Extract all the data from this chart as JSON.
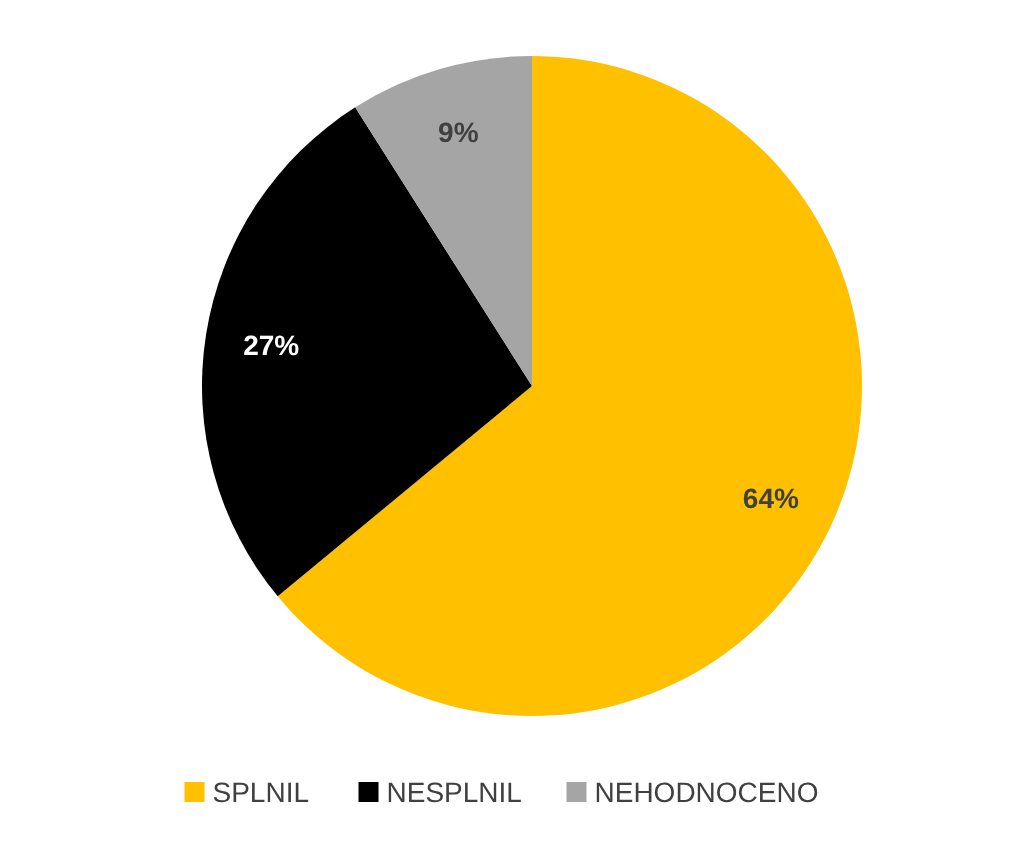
{
  "chart_data": {
    "type": "pie",
    "categories": [
      "SPLNIL",
      "NESPLNIL",
      "NEHODNOCENO"
    ],
    "values": [
      64,
      27,
      9
    ],
    "colors": [
      "#ffc000",
      "#000000",
      "#a5a5a5"
    ],
    "value_labels": [
      "64%",
      "27%",
      "9%"
    ],
    "legend": "bottom"
  }
}
